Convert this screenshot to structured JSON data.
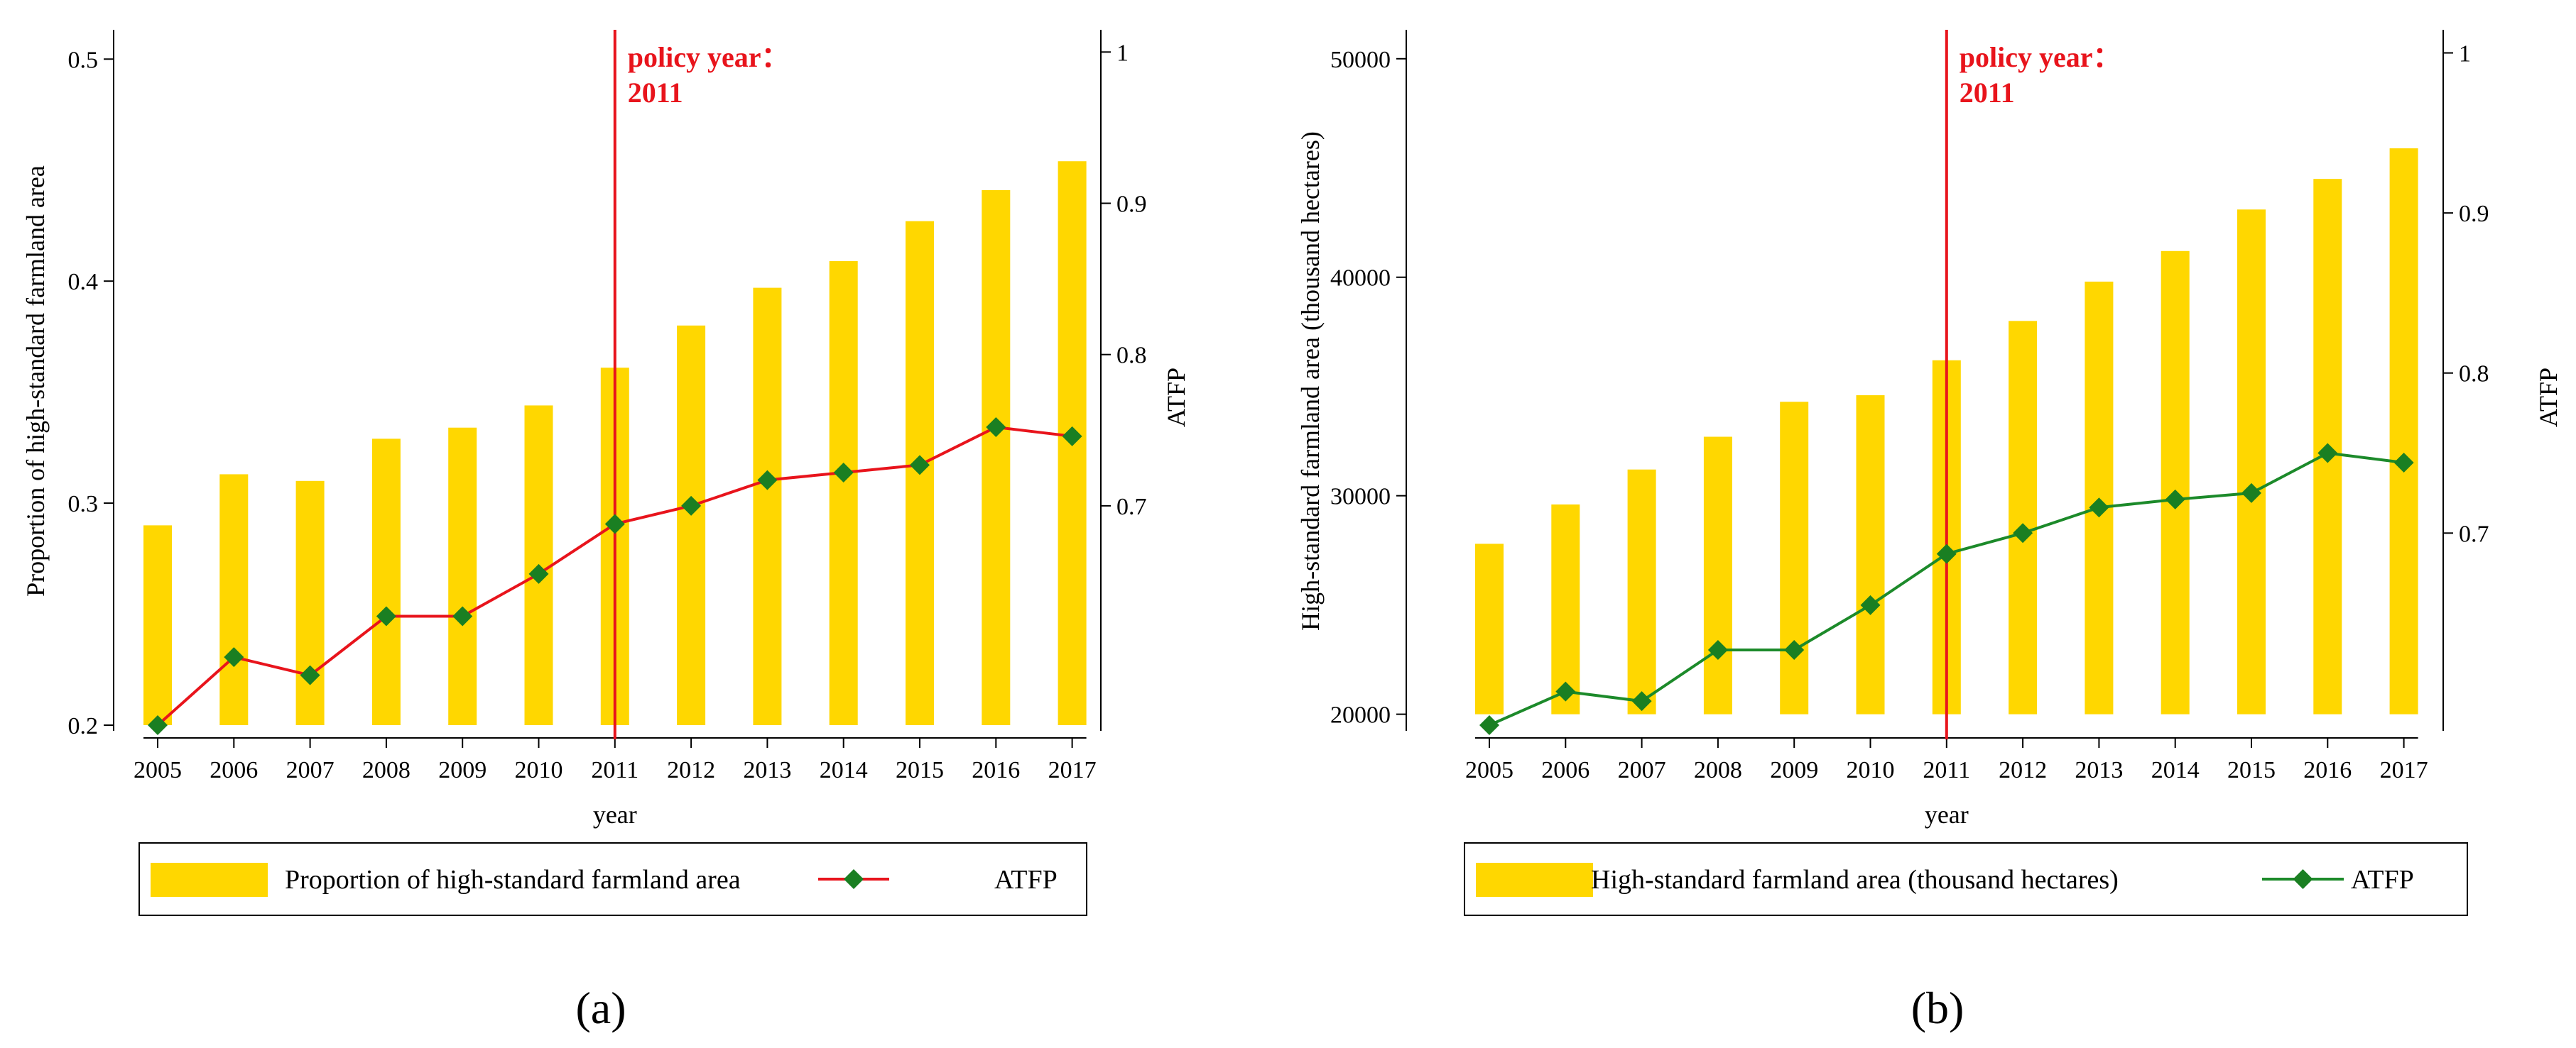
{
  "colors": {
    "bar": "#ffd700",
    "line_a": "#e8141c",
    "line_b": "#1c8a2a",
    "marker": "#1a7f22",
    "policy": "#e8141c"
  },
  "chart_data": [
    {
      "type": "bar",
      "panel_label": "(a)",
      "categories": [
        "2005",
        "2006",
        "2007",
        "2008",
        "2009",
        "2010",
        "2011",
        "2012",
        "2013",
        "2014",
        "2015",
        "2016",
        "2017"
      ],
      "xlabel": "year",
      "ylabel": "Proportion of high-standard farmland area",
      "y2label": "ATFP",
      "ylim": [
        0.2,
        0.51
      ],
      "y2lim": [
        0.555,
        1.01
      ],
      "yticks": [
        "0.2",
        "0.3",
        "0.4",
        "0.5"
      ],
      "yticks_values": [
        0.2,
        0.3,
        0.4,
        0.5
      ],
      "y2ticks": [
        "0.7",
        "0.8",
        "0.9",
        "1"
      ],
      "y2ticks_values": [
        0.7,
        0.8,
        0.9,
        1.0
      ],
      "bar_base": 0.2,
      "series": [
        {
          "name": "Proportion of high-standard farmland area",
          "kind": "bar",
          "axis": "left",
          "values": [
            0.29,
            0.313,
            0.31,
            0.329,
            0.334,
            0.344,
            0.361,
            0.38,
            0.397,
            0.409,
            0.427,
            0.441,
            0.454
          ]
        },
        {
          "name": "ATFP",
          "kind": "line",
          "axis": "right",
          "values": [
            0.555,
            0.6,
            0.588,
            0.627,
            0.627,
            0.655,
            0.688,
            0.7,
            0.717,
            0.722,
            0.727,
            0.752,
            0.746
          ]
        }
      ],
      "annotation": {
        "line1": "policy year：",
        "line2": "2011",
        "category": "2011"
      },
      "legend_position": "bottom"
    },
    {
      "type": "bar",
      "panel_label": "(b)",
      "categories": [
        "2005",
        "2006",
        "2007",
        "2008",
        "2009",
        "2010",
        "2011",
        "2012",
        "2013",
        "2014",
        "2015",
        "2016",
        "2017"
      ],
      "xlabel": "year",
      "ylabel": "High-standard farmland area (thousand hectares)",
      "y2label": "ATFP",
      "ylim": [
        19500,
        51000
      ],
      "y2lim": [
        0.58,
        1.01
      ],
      "yticks": [
        "20000",
        "30000",
        "40000",
        "50000"
      ],
      "yticks_values": [
        20000,
        30000,
        40000,
        50000
      ],
      "y2ticks": [
        "0.7",
        "0.8",
        "0.9",
        "1"
      ],
      "y2ticks_values": [
        0.7,
        0.8,
        0.9,
        1.0
      ],
      "bar_base": 20000,
      "series": [
        {
          "name": "High-standard farmland area (thousand hectares)",
          "kind": "bar",
          "axis": "left",
          "values": [
            27800,
            29600,
            31200,
            32700,
            34300,
            34600,
            36200,
            38000,
            39800,
            41200,
            43100,
            44500,
            45900
          ]
        },
        {
          "name": "ATFP",
          "kind": "line",
          "axis": "right",
          "values": [
            0.58,
            0.601,
            0.595,
            0.627,
            0.627,
            0.655,
            0.687,
            0.7,
            0.716,
            0.721,
            0.725,
            0.75,
            0.744
          ]
        }
      ],
      "annotation": {
        "line1": "policy year：",
        "line2": "2011",
        "category": "2011"
      },
      "legend_position": "bottom"
    }
  ]
}
